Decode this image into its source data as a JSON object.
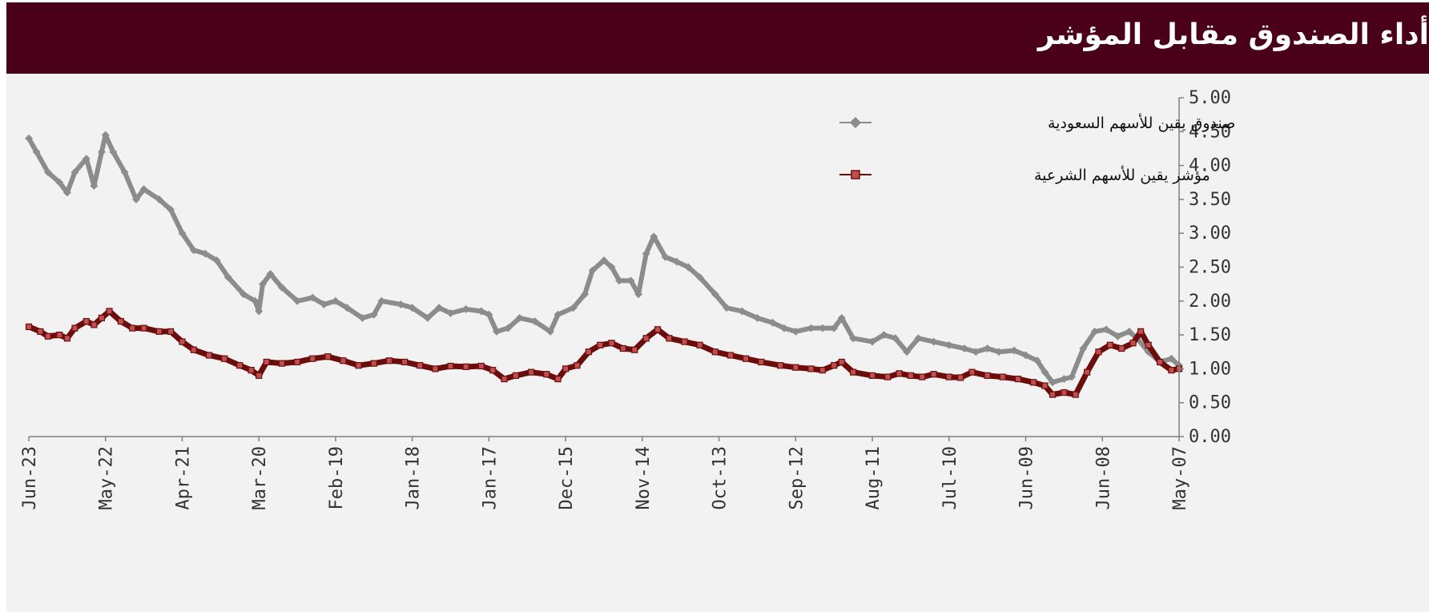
{
  "header": {
    "title": "أداء الصندوق مقابل المؤشر"
  },
  "colors": {
    "header_bg": "#4a0019",
    "fund": "#8c8c8c",
    "index": "#6b0d0d",
    "index_marker_fill": "#c0504d"
  },
  "chart_data": {
    "type": "line",
    "title": "",
    "xlabel": "",
    "ylabel": "",
    "ylim": [
      0,
      5
    ],
    "yticks": [
      "0.00",
      "0.50",
      "1.00",
      "1.50",
      "2.00",
      "2.50",
      "3.00",
      "3.50",
      "4.00",
      "4.50",
      "5.00"
    ],
    "y_axis_position": "right",
    "x_order": "reversed (newest on left)",
    "categories": [
      "Jun-23",
      "May-22",
      "Apr-21",
      "Mar-20",
      "Feb-19",
      "Jan-18",
      "Jan-17",
      "Dec-15",
      "Nov-14",
      "Oct-13",
      "Sep-12",
      "Aug-11",
      "Jul-10",
      "Jun-09",
      "Jun-08",
      "May-07"
    ],
    "legend_position": "top-right",
    "grid": false,
    "series": [
      {
        "name": "صندوق يقين للأسهم السعودية",
        "color": "#8c8c8c",
        "marker": "diamond",
        "points": [
          [
            0,
            4.4
          ],
          [
            0.1,
            4.2
          ],
          [
            0.25,
            3.9
          ],
          [
            0.4,
            3.75
          ],
          [
            0.5,
            3.6
          ],
          [
            0.6,
            3.9
          ],
          [
            0.75,
            4.1
          ],
          [
            0.85,
            3.7
          ],
          [
            0.95,
            4.2
          ],
          [
            1.0,
            4.45
          ],
          [
            1.1,
            4.2
          ],
          [
            1.25,
            3.9
          ],
          [
            1.4,
            3.5
          ],
          [
            1.5,
            3.65
          ],
          [
            1.7,
            3.5
          ],
          [
            1.85,
            3.35
          ],
          [
            2.0,
            3.0
          ],
          [
            2.15,
            2.75
          ],
          [
            2.3,
            2.7
          ],
          [
            2.45,
            2.6
          ],
          [
            2.6,
            2.35
          ],
          [
            2.8,
            2.1
          ],
          [
            2.95,
            2.0
          ],
          [
            3.0,
            1.85
          ],
          [
            3.05,
            2.25
          ],
          [
            3.15,
            2.4
          ],
          [
            3.3,
            2.2
          ],
          [
            3.5,
            2.0
          ],
          [
            3.7,
            2.05
          ],
          [
            3.85,
            1.95
          ],
          [
            4.0,
            2.0
          ],
          [
            4.15,
            1.9
          ],
          [
            4.35,
            1.75
          ],
          [
            4.5,
            1.8
          ],
          [
            4.6,
            2.0
          ],
          [
            4.85,
            1.95
          ],
          [
            5.0,
            1.9
          ],
          [
            5.2,
            1.75
          ],
          [
            5.35,
            1.9
          ],
          [
            5.5,
            1.82
          ],
          [
            5.7,
            1.88
          ],
          [
            5.9,
            1.85
          ],
          [
            6.0,
            1.8
          ],
          [
            6.1,
            1.55
          ],
          [
            6.25,
            1.6
          ],
          [
            6.4,
            1.75
          ],
          [
            6.6,
            1.7
          ],
          [
            6.8,
            1.55
          ],
          [
            6.9,
            1.8
          ],
          [
            7.1,
            1.9
          ],
          [
            7.25,
            2.1
          ],
          [
            7.35,
            2.45
          ],
          [
            7.5,
            2.6
          ],
          [
            7.6,
            2.5
          ],
          [
            7.7,
            2.3
          ],
          [
            7.85,
            2.3
          ],
          [
            7.95,
            2.1
          ],
          [
            8.05,
            2.7
          ],
          [
            8.15,
            2.95
          ],
          [
            8.3,
            2.65
          ],
          [
            8.45,
            2.58
          ],
          [
            8.6,
            2.5
          ],
          [
            8.75,
            2.35
          ],
          [
            8.95,
            2.1
          ],
          [
            9.1,
            1.9
          ],
          [
            9.3,
            1.85
          ],
          [
            9.5,
            1.75
          ],
          [
            9.7,
            1.68
          ],
          [
            9.85,
            1.6
          ],
          [
            10.0,
            1.55
          ],
          [
            10.2,
            1.6
          ],
          [
            10.35,
            1.6
          ],
          [
            10.5,
            1.6
          ],
          [
            10.6,
            1.75
          ],
          [
            10.75,
            1.45
          ],
          [
            11.0,
            1.4
          ],
          [
            11.15,
            1.5
          ],
          [
            11.3,
            1.45
          ],
          [
            11.45,
            1.25
          ],
          [
            11.6,
            1.45
          ],
          [
            11.8,
            1.4
          ],
          [
            12.0,
            1.35
          ],
          [
            12.2,
            1.3
          ],
          [
            12.35,
            1.25
          ],
          [
            12.5,
            1.3
          ],
          [
            12.65,
            1.25
          ],
          [
            12.85,
            1.27
          ],
          [
            13.0,
            1.2
          ],
          [
            13.15,
            1.12
          ],
          [
            13.25,
            0.95
          ],
          [
            13.35,
            0.8
          ],
          [
            13.5,
            0.85
          ],
          [
            13.6,
            0.88
          ],
          [
            13.75,
            1.3
          ],
          [
            13.9,
            1.55
          ],
          [
            14.05,
            1.58
          ],
          [
            14.2,
            1.48
          ],
          [
            14.35,
            1.55
          ],
          [
            14.45,
            1.45
          ],
          [
            14.6,
            1.25
          ],
          [
            14.75,
            1.1
          ],
          [
            14.9,
            1.15
          ],
          [
            15.0,
            1.05
          ]
        ]
      },
      {
        "name": "مؤشر يقين للأسهم الشرعية",
        "color": "#6b0d0d",
        "marker": "square",
        "points": [
          [
            0,
            1.62
          ],
          [
            0.15,
            1.55
          ],
          [
            0.25,
            1.48
          ],
          [
            0.4,
            1.5
          ],
          [
            0.5,
            1.45
          ],
          [
            0.6,
            1.6
          ],
          [
            0.75,
            1.7
          ],
          [
            0.85,
            1.65
          ],
          [
            0.95,
            1.75
          ],
          [
            1.05,
            1.85
          ],
          [
            1.2,
            1.7
          ],
          [
            1.35,
            1.6
          ],
          [
            1.5,
            1.6
          ],
          [
            1.7,
            1.55
          ],
          [
            1.85,
            1.55
          ],
          [
            2.0,
            1.4
          ],
          [
            2.15,
            1.28
          ],
          [
            2.35,
            1.2
          ],
          [
            2.55,
            1.15
          ],
          [
            2.75,
            1.05
          ],
          [
            2.9,
            0.98
          ],
          [
            3.0,
            0.9
          ],
          [
            3.1,
            1.1
          ],
          [
            3.3,
            1.08
          ],
          [
            3.5,
            1.1
          ],
          [
            3.7,
            1.15
          ],
          [
            3.9,
            1.18
          ],
          [
            4.1,
            1.12
          ],
          [
            4.3,
            1.05
          ],
          [
            4.5,
            1.08
          ],
          [
            4.7,
            1.12
          ],
          [
            4.9,
            1.1
          ],
          [
            5.1,
            1.05
          ],
          [
            5.3,
            1.0
          ],
          [
            5.5,
            1.04
          ],
          [
            5.7,
            1.03
          ],
          [
            5.9,
            1.04
          ],
          [
            6.05,
            0.98
          ],
          [
            6.2,
            0.85
          ],
          [
            6.35,
            0.9
          ],
          [
            6.55,
            0.95
          ],
          [
            6.75,
            0.92
          ],
          [
            6.9,
            0.85
          ],
          [
            7.0,
            1.0
          ],
          [
            7.15,
            1.05
          ],
          [
            7.3,
            1.25
          ],
          [
            7.45,
            1.35
          ],
          [
            7.6,
            1.38
          ],
          [
            7.75,
            1.3
          ],
          [
            7.9,
            1.28
          ],
          [
            8.05,
            1.45
          ],
          [
            8.2,
            1.58
          ],
          [
            8.35,
            1.45
          ],
          [
            8.55,
            1.4
          ],
          [
            8.75,
            1.35
          ],
          [
            8.95,
            1.25
          ],
          [
            9.15,
            1.2
          ],
          [
            9.35,
            1.15
          ],
          [
            9.55,
            1.1
          ],
          [
            9.8,
            1.05
          ],
          [
            10.0,
            1.02
          ],
          [
            10.2,
            1.0
          ],
          [
            10.35,
            0.98
          ],
          [
            10.5,
            1.05
          ],
          [
            10.6,
            1.1
          ],
          [
            10.75,
            0.95
          ],
          [
            11.0,
            0.9
          ],
          [
            11.2,
            0.88
          ],
          [
            11.35,
            0.93
          ],
          [
            11.5,
            0.9
          ],
          [
            11.65,
            0.88
          ],
          [
            11.8,
            0.92
          ],
          [
            12.0,
            0.88
          ],
          [
            12.15,
            0.87
          ],
          [
            12.3,
            0.95
          ],
          [
            12.5,
            0.9
          ],
          [
            12.7,
            0.88
          ],
          [
            12.9,
            0.85
          ],
          [
            13.1,
            0.8
          ],
          [
            13.25,
            0.75
          ],
          [
            13.35,
            0.62
          ],
          [
            13.5,
            0.65
          ],
          [
            13.65,
            0.62
          ],
          [
            13.8,
            0.95
          ],
          [
            13.95,
            1.25
          ],
          [
            14.1,
            1.35
          ],
          [
            14.25,
            1.3
          ],
          [
            14.4,
            1.38
          ],
          [
            14.5,
            1.55
          ],
          [
            14.6,
            1.35
          ],
          [
            14.75,
            1.1
          ],
          [
            14.9,
            0.98
          ],
          [
            15.0,
            1.0
          ]
        ]
      }
    ]
  }
}
